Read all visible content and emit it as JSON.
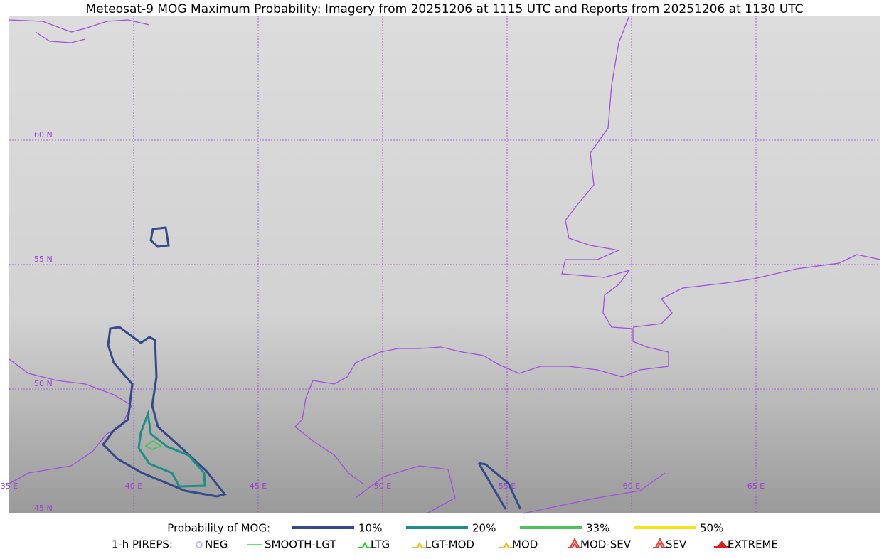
{
  "title": "Meteosat-9 MOG Maximum Probability: Imagery from 20251206 at 1115 UTC and Reports from 20251206 at 1130 UTC",
  "grid_labels": {
    "lat": [
      "60 N",
      "55 N",
      "50 N",
      "45 N"
    ],
    "lon": [
      "35 E",
      "40 E",
      "45 E",
      "50 E",
      "55 E",
      "60 E",
      "65 E"
    ]
  },
  "legend": {
    "probability": {
      "label": "Probability of MOG:",
      "items": [
        {
          "label": "10%",
          "color": "#36498a"
        },
        {
          "label": "20%",
          "color": "#1f8f86"
        },
        {
          "label": "33%",
          "color": "#4cc35a"
        },
        {
          "label": "50%",
          "color": "#f5e21a"
        }
      ]
    },
    "pireps": {
      "label": "1-h PIREPS:",
      "items": [
        {
          "label": "NEG",
          "color": "#b9b9f5"
        },
        {
          "label": "SMOOTH-LGT",
          "color": "#3ad63a"
        },
        {
          "label": "LTG",
          "color": "#19d619"
        },
        {
          "label": "LGT-MOD",
          "color": "#f5b71a"
        },
        {
          "label": "MOD",
          "color": "#f5b71a"
        },
        {
          "label": "MOD-SEV",
          "color": "#e33a3a"
        },
        {
          "label": "SEV",
          "color": "#e33a3a"
        },
        {
          "label": "EXTREME",
          "color": "#e31a1a"
        }
      ]
    }
  }
}
